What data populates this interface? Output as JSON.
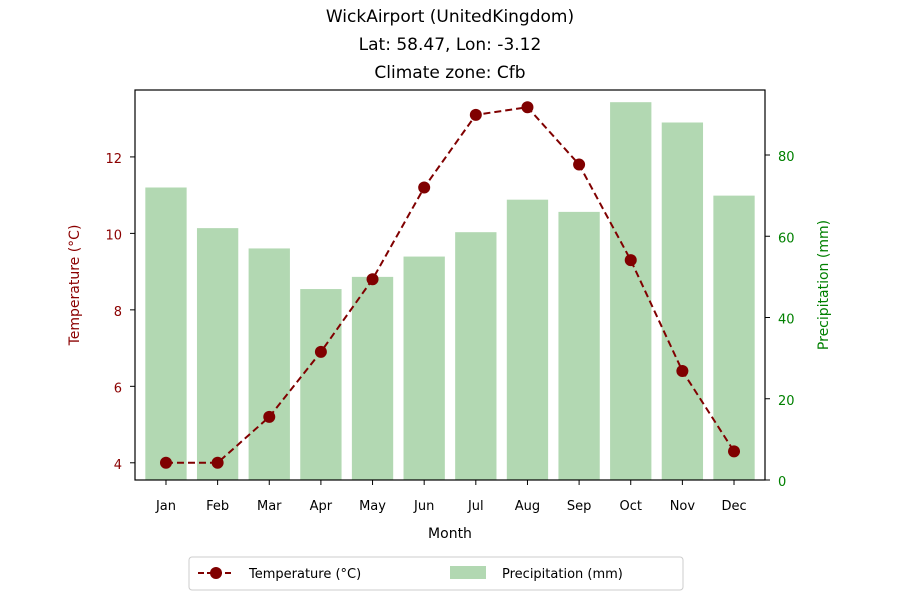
{
  "chart_data": {
    "type": "bar",
    "title_lines": [
      "WickAirport (UnitedKingdom)",
      "Lat: 58.47, Lon: -3.12",
      "Climate zone: Cfb"
    ],
    "xlabel": "Month",
    "ylabel_left": "Temperature (°C)",
    "ylabel_right": "Precipitation (mm)",
    "categories": [
      "Jan",
      "Feb",
      "Mar",
      "Apr",
      "May",
      "Jun",
      "Jul",
      "Aug",
      "Sep",
      "Oct",
      "Nov",
      "Dec"
    ],
    "temperature": {
      "name": "Temperature (°C)",
      "color": "#800000",
      "style": "dashed line with circle markers",
      "values": [
        4.0,
        4.0,
        5.2,
        6.9,
        8.8,
        11.2,
        13.1,
        13.3,
        11.8,
        9.3,
        6.4,
        4.3
      ]
    },
    "precipitation": {
      "name": "Precipitation (mm)",
      "color": "#b2d8b2",
      "style": "bars",
      "values": [
        72,
        62,
        57,
        47,
        50,
        55,
        61,
        69,
        66,
        93,
        88,
        70
      ]
    },
    "ylim_left": [
      3.55,
      13.75
    ],
    "yticks_left": [
      4,
      6,
      8,
      10,
      12
    ],
    "ylim_right": [
      0,
      96
    ],
    "yticks_right": [
      0,
      20,
      40,
      60,
      80
    ],
    "left_axis_color": "#8b0000",
    "right_axis_color": "#008000",
    "legend_position": "bottom-center",
    "grid": false
  }
}
